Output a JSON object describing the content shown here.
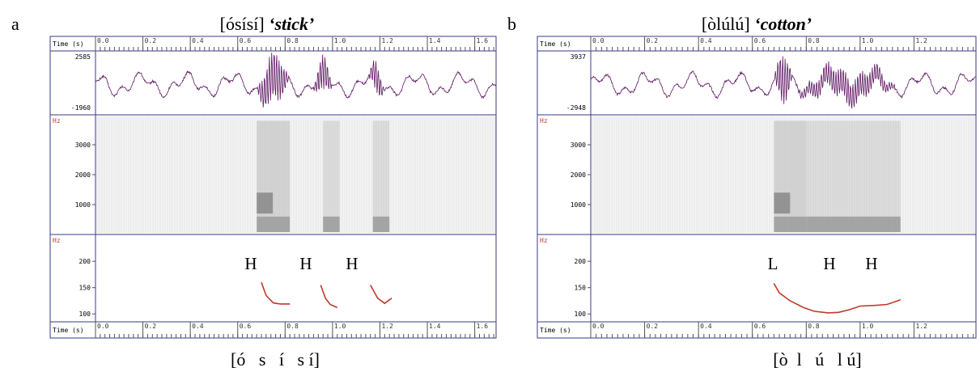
{
  "panels": [
    {
      "label": "a",
      "title": "[ósísí]",
      "gloss": "‘stick’",
      "time_label": "Time (s)",
      "xlim": [
        0,
        1.69
      ],
      "xticks": [
        {
          "value": 0,
          "label": "0.0"
        },
        {
          "value": 0.2,
          "label": "0.2"
        },
        {
          "value": 0.4,
          "label": "0.4"
        },
        {
          "value": 0.6,
          "label": "0.6"
        },
        {
          "value": 0.8,
          "label": "0.8"
        },
        {
          "value": 1,
          "label": "1.0"
        },
        {
          "value": 1.2,
          "label": "1.2"
        },
        {
          "value": 1.4,
          "label": "1.4"
        },
        {
          "value": 1.6,
          "label": "1.6"
        }
      ],
      "amplitude_max": 2585,
      "amplitude_min": -1960,
      "spectrogram": {
        "unit": "Hz",
        "ylim": [
          0,
          4000
        ],
        "yticks": [
          1000,
          2000,
          3000
        ]
      },
      "pitch": {
        "unit": "Hz",
        "ylim": [
          85,
          251
        ],
        "yticks": [
          100,
          150,
          200
        ],
        "color": "#c0392b",
        "tones": [
          "H",
          "H",
          "H"
        ],
        "tracks": [
          {
            "x": [
              0.7,
              0.72,
              0.75,
              0.78,
              0.82
            ],
            "y": [
              160,
              135,
              121,
              119,
              119
            ]
          },
          {
            "x": [
              0.95,
              0.97,
              0.99,
              1.02
            ],
            "y": [
              155,
              130,
              118,
              112
            ]
          },
          {
            "x": [
              1.16,
              1.19,
              1.22,
              1.25
            ],
            "y": [
              155,
              130,
              120,
              130
            ]
          }
        ]
      },
      "transcription": "[ó   s   í   s í]"
    },
    {
      "label": "b",
      "title": "[òlúlú]",
      "gloss": "‘cotton’",
      "time_label": "Time (s)",
      "xlim": [
        0,
        1.43
      ],
      "xticks": [
        {
          "value": 0,
          "label": "0.0"
        },
        {
          "value": 0.2,
          "label": "0.2"
        },
        {
          "value": 0.4,
          "label": "0.4"
        },
        {
          "value": 0.6,
          "label": "0.6"
        },
        {
          "value": 0.8,
          "label": "0.8"
        },
        {
          "value": 1,
          "label": "1.0"
        },
        {
          "value": 1.2,
          "label": "1.2"
        }
      ],
      "amplitude_max": 3937,
      "amplitude_min": -2948,
      "spectrogram": {
        "unit": "Hz",
        "ylim": [
          0,
          4000
        ],
        "yticks": [
          1000,
          2000,
          3000
        ]
      },
      "pitch": {
        "unit": "Hz",
        "ylim": [
          85,
          251
        ],
        "yticks": [
          100,
          150,
          200
        ],
        "color": "#c0392b",
        "tones": [
          "L",
          "H",
          "H"
        ],
        "tracks": [
          {
            "x": [
              0.68,
              0.7,
              0.74,
              0.79,
              0.83,
              0.88,
              0.92,
              0.96,
              1.0,
              1.05,
              1.1,
              1.15
            ],
            "y": [
              158,
              140,
              125,
              112,
              105,
              102,
              103,
              108,
              115,
              116,
              118,
              127
            ]
          }
        ]
      },
      "transcription": "[ò  l   ú   l ú]"
    }
  ]
}
